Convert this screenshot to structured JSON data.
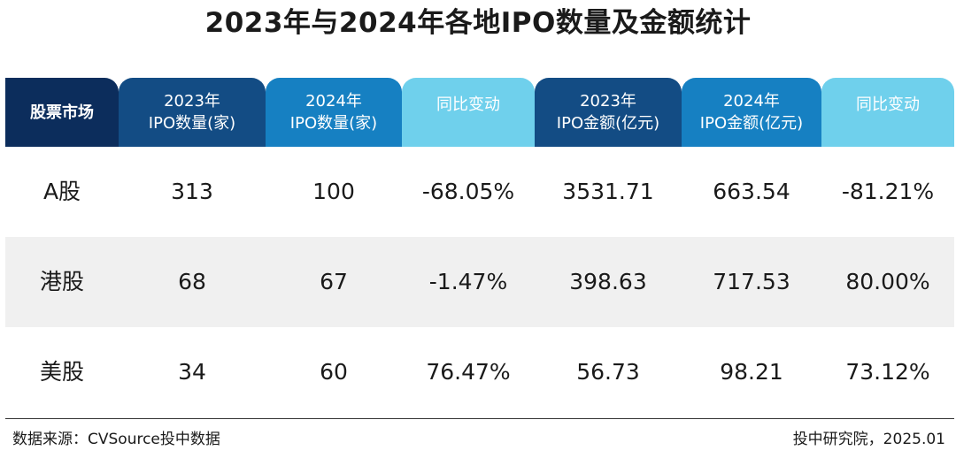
{
  "title": "2023年与2024年各地IPO数量及金额统计",
  "colors": {
    "navy": "#0c2d5c",
    "dark_blue": "#134c84",
    "mid_blue": "#1680c2",
    "light_blue": "#6fd0ec"
  },
  "chart_data": {
    "type": "table",
    "title": "2023年与2024年各地IPO数量及金额统计",
    "columns": [
      {
        "line1": "股票市场",
        "line2": ""
      },
      {
        "line1": "2023年",
        "line2": "IPO数量(家)"
      },
      {
        "line1": "2024年",
        "line2": "IPO数量(家)"
      },
      {
        "line1": "同比变动",
        "line2": ""
      },
      {
        "line1": "2023年",
        "line2": "IPO金额(亿元)"
      },
      {
        "line1": "2024年",
        "line2": "IPO金额(亿元)"
      },
      {
        "line1": "同比变动",
        "line2": ""
      }
    ],
    "rows": [
      {
        "market": "A股",
        "ipo_count_2023": "313",
        "ipo_count_2024": "100",
        "count_yoy": "-68.05%",
        "ipo_amount_2023": "3531.71",
        "ipo_amount_2024": "663.54",
        "amount_yoy": "-81.21%"
      },
      {
        "market": "港股",
        "ipo_count_2023": "68",
        "ipo_count_2024": "67",
        "count_yoy": "-1.47%",
        "ipo_amount_2023": "398.63",
        "ipo_amount_2024": "717.53",
        "amount_yoy": "80.00%"
      },
      {
        "market": "美股",
        "ipo_count_2023": "34",
        "ipo_count_2024": "60",
        "count_yoy": "76.47%",
        "ipo_amount_2023": "56.73",
        "ipo_amount_2024": "98.21",
        "amount_yoy": "73.12%"
      }
    ]
  },
  "footer": {
    "source": "数据来源：CVSource投中数据",
    "credit": "投中研究院，2025.01"
  }
}
